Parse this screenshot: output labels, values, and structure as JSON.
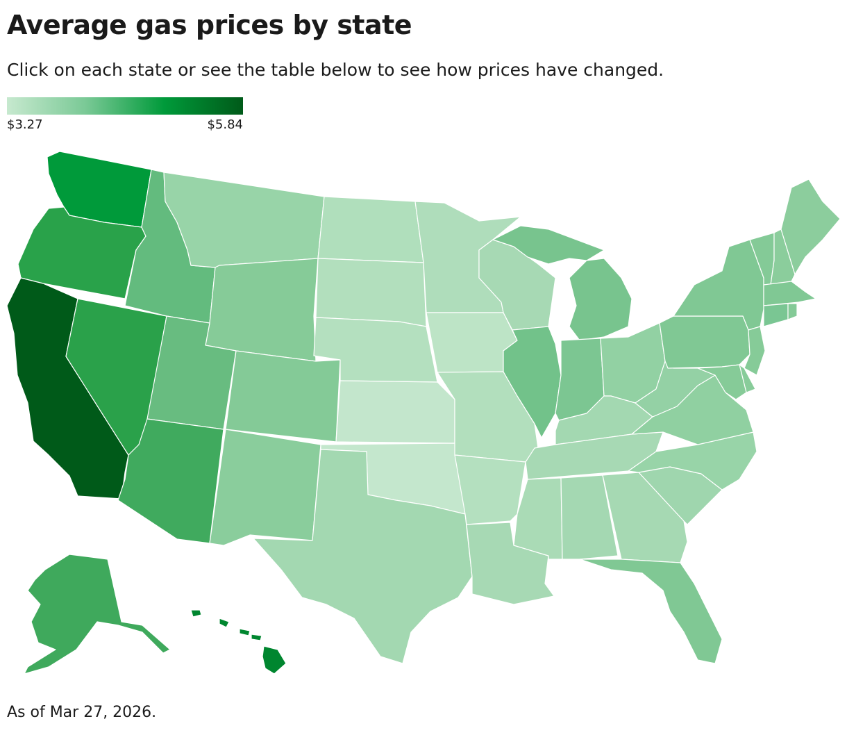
{
  "title": "Average gas prices by state",
  "subtitle": "Click on each state or see the table below to see how prices have changed.",
  "legend": {
    "min_label": "$3.27",
    "max_label": "$5.84",
    "colors": [
      "#c7e9cf",
      "#7ac996",
      "#009a3a",
      "#005a19"
    ]
  },
  "footer": "As of Mar 27, 2026.",
  "map_data": {
    "type": "choropleth",
    "metric": "Average gas price (USD per gallon)",
    "scale": {
      "min": 3.27,
      "max": 5.84
    },
    "states": [
      {
        "id": "WA",
        "fill": "#009a3a"
      },
      {
        "id": "OR",
        "fill": "#29a24a"
      },
      {
        "id": "CA",
        "fill": "#005a19"
      },
      {
        "id": "NV",
        "fill": "#2aa14a"
      },
      {
        "id": "ID",
        "fill": "#63bb7e"
      },
      {
        "id": "MT",
        "fill": "#98d4a8"
      },
      {
        "id": "WY",
        "fill": "#86cb98"
      },
      {
        "id": "UT",
        "fill": "#68bc80"
      },
      {
        "id": "AZ",
        "fill": "#40aa5e"
      },
      {
        "id": "CO",
        "fill": "#84ca97"
      },
      {
        "id": "NM",
        "fill": "#8acd9c"
      },
      {
        "id": "ND",
        "fill": "#b0dfbc"
      },
      {
        "id": "SD",
        "fill": "#b2dfbd"
      },
      {
        "id": "NE",
        "fill": "#b4e0bf"
      },
      {
        "id": "KS",
        "fill": "#c3e6cc"
      },
      {
        "id": "OK",
        "fill": "#c4e7cd"
      },
      {
        "id": "TX",
        "fill": "#a3d8b1"
      },
      {
        "id": "MN",
        "fill": "#afddbb"
      },
      {
        "id": "IA",
        "fill": "#bde4c6"
      },
      {
        "id": "MO",
        "fill": "#b2dfbd"
      },
      {
        "id": "AR",
        "fill": "#b4e0bf"
      },
      {
        "id": "LA",
        "fill": "#a7d9b4"
      },
      {
        "id": "WI",
        "fill": "#a7d9b4"
      },
      {
        "id": "IL",
        "fill": "#72c28a"
      },
      {
        "id": "MI",
        "fill": "#78c48e"
      },
      {
        "id": "IN",
        "fill": "#7cc692"
      },
      {
        "id": "OH",
        "fill": "#92d1a3"
      },
      {
        "id": "KY",
        "fill": "#a3d8b1"
      },
      {
        "id": "TN",
        "fill": "#a7d9b4"
      },
      {
        "id": "MS",
        "fill": "#aadbb6"
      },
      {
        "id": "AL",
        "fill": "#a4d8b2"
      },
      {
        "id": "GA",
        "fill": "#a6d9b3"
      },
      {
        "id": "FL",
        "fill": "#80c894"
      },
      {
        "id": "SC",
        "fill": "#9fd6ae"
      },
      {
        "id": "NC",
        "fill": "#98d4a8"
      },
      {
        "id": "VA",
        "fill": "#90d0a1"
      },
      {
        "id": "WV",
        "fill": "#94d1a5"
      },
      {
        "id": "PA",
        "fill": "#80c894"
      },
      {
        "id": "NY",
        "fill": "#80c894"
      },
      {
        "id": "VT",
        "fill": "#84ca97"
      },
      {
        "id": "NH",
        "fill": "#8bcd9c"
      },
      {
        "id": "ME",
        "fill": "#8ccd9d"
      },
      {
        "id": "MA",
        "fill": "#80c894"
      },
      {
        "id": "CT",
        "fill": "#7ac693"
      },
      {
        "id": "RI",
        "fill": "#84ca97"
      },
      {
        "id": "NJ",
        "fill": "#86cb98"
      },
      {
        "id": "DE",
        "fill": "#88cc9a"
      },
      {
        "id": "MD",
        "fill": "#86cb98"
      },
      {
        "id": "AK",
        "fill": "#3fa95c"
      },
      {
        "id": "HI",
        "fill": "#00862f"
      }
    ]
  }
}
